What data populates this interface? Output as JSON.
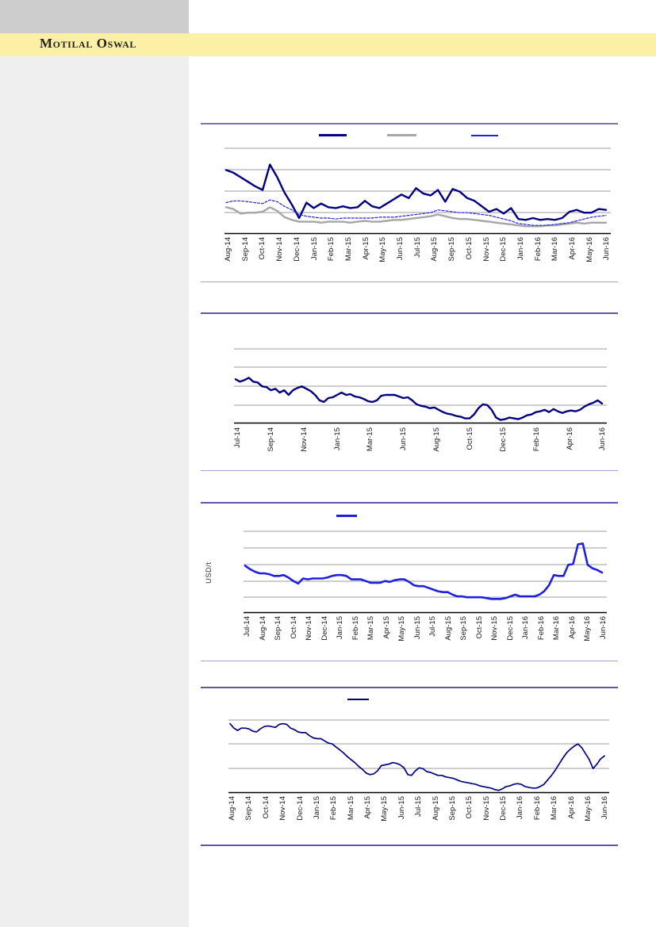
{
  "header": {
    "brand": "Motilal Oswal",
    "band_color": "#fcf0a6",
    "corner_color": "#cdcdcd",
    "sidebar_color": "#efefef"
  },
  "chart_data": [
    {
      "type": "line",
      "values_scale": "percent-of-plot-height",
      "y_tick_labels": [],
      "x_tick_labels": [
        "Aug-14",
        "Sep-14",
        "Oct-14",
        "Nov-14",
        "Dec-14",
        "Jan-15",
        "Feb-15",
        "Mar-15",
        "Apr-15",
        "May-15",
        "Jun-15",
        "Jul-15",
        "Aug-15",
        "Sep-15",
        "Oct-15",
        "Nov-15",
        "Dec-15",
        "Jan-16",
        "Feb-16",
        "Mar-16",
        "Apr-16",
        "May-16",
        "Jun-16"
      ],
      "legend": {
        "position": "top",
        "entries_text_visible": false
      },
      "series": [
        {
          "name": "navy-solid",
          "color": "#000080",
          "style": "solid",
          "width": 2.4,
          "values": [
            70,
            67,
            62,
            57,
            52,
            48,
            76,
            62,
            45,
            32,
            17,
            34,
            28,
            33,
            29,
            28,
            30,
            28,
            29,
            36,
            30,
            28,
            33,
            38,
            43,
            39,
            50,
            44,
            42,
            48,
            35,
            49,
            46,
            39,
            36,
            30,
            24,
            27,
            22,
            28,
            16,
            15,
            17,
            15,
            16,
            15,
            17,
            24,
            26,
            23,
            23,
            27,
            26
          ]
        },
        {
          "name": "gray-solid",
          "color": "#a6a6a6",
          "style": "solid",
          "width": 2.4,
          "values": [
            29,
            27,
            22,
            23,
            23,
            24,
            29,
            25,
            18,
            15,
            13,
            13,
            13,
            12,
            13,
            13,
            13,
            12,
            13,
            14,
            13,
            13,
            14,
            15,
            15,
            16,
            17,
            18,
            19,
            21,
            19,
            17,
            16,
            16,
            15,
            14,
            13,
            12,
            11,
            10,
            9,
            8,
            8,
            8,
            9,
            9,
            10,
            11,
            12,
            11,
            12,
            12,
            12
          ]
        },
        {
          "name": "blue-dashed",
          "color": "#2424dd",
          "style": "dashed",
          "width": 1.2,
          "values": [
            34,
            36,
            36,
            35,
            34,
            33,
            37,
            35,
            30,
            26,
            21,
            19,
            18,
            17,
            17,
            16,
            17,
            17,
            17,
            17,
            17,
            18,
            18,
            18,
            19,
            20,
            21,
            22,
            23,
            26,
            25,
            24,
            23,
            23,
            22,
            21,
            20,
            18,
            16,
            14,
            11,
            10,
            9,
            9,
            9,
            10,
            11,
            12,
            14,
            16,
            18,
            19,
            20
          ]
        }
      ]
    },
    {
      "type": "line",
      "values_scale": "percent-of-plot-height",
      "y_tick_labels": [],
      "x_tick_labels": [
        "Jul-14",
        "Sep-14",
        "Nov-14",
        "Jan-15",
        "Mar-15",
        "Jun-15",
        "Aug-15",
        "Oct-15",
        "Dec-15",
        "Feb-16",
        "Apr-16",
        "Jun-16"
      ],
      "series": [
        {
          "name": "navy-solid",
          "color": "#000080",
          "style": "solid",
          "width": 2.4,
          "values": [
            56,
            53,
            55,
            58,
            53,
            52,
            47,
            46,
            42,
            44,
            39,
            42,
            36,
            42,
            45,
            47,
            44,
            41,
            36,
            29,
            27,
            32,
            33,
            36,
            39,
            36,
            37,
            34,
            33,
            31,
            28,
            27,
            29,
            35,
            36,
            36,
            36,
            34,
            32,
            33,
            29,
            24,
            22,
            21,
            19,
            20,
            17,
            14,
            12,
            11,
            9,
            8,
            6,
            6,
            11,
            19,
            24,
            23,
            17,
            7,
            4,
            5,
            7,
            6,
            5,
            7,
            10,
            11,
            14,
            15,
            17,
            14,
            18,
            15,
            13,
            15,
            16,
            15,
            17,
            21,
            24,
            26,
            29,
            25
          ]
        }
      ]
    },
    {
      "type": "line",
      "values_scale": "percent-of-plot-height",
      "y_axis_label": "USD/t",
      "y_tick_labels": [],
      "x_tick_labels": [
        "Jul-14",
        "Aug-14",
        "Sep-14",
        "Oct-14",
        "Nov-14",
        "Dec-14",
        "Jan-15",
        "Feb-15",
        "Mar-15",
        "Apr-15",
        "May-15",
        "Jun-15",
        "Jul-15",
        "Aug-15",
        "Sep-15",
        "Oct-15",
        "Nov-15",
        "Dec-15",
        "Jan-16",
        "Feb-16",
        "Mar-16",
        "Apr-16",
        "May-16",
        "Jun-16"
      ],
      "legend": {
        "position": "top",
        "entries_text_visible": false
      },
      "series": [
        {
          "name": "blue-solid",
          "color": "#1f1fe0",
          "style": "solid",
          "width": 2.6,
          "values": [
            55,
            51,
            48,
            46,
            46,
            45,
            43,
            43,
            44,
            41,
            37,
            34,
            40,
            39,
            40,
            40,
            40,
            41,
            43,
            44,
            44,
            43,
            39,
            39,
            39,
            37,
            35,
            35,
            35,
            37,
            36,
            38,
            39,
            39,
            36,
            32,
            31,
            31,
            29,
            27,
            25,
            24,
            24,
            21,
            19,
            19,
            18,
            18,
            18,
            18,
            17,
            16,
            16,
            16,
            17,
            19,
            21,
            19,
            19,
            19,
            19,
            21,
            25,
            32,
            44,
            43,
            43,
            56,
            57,
            80,
            81,
            56,
            52,
            50,
            47
          ]
        }
      ]
    },
    {
      "type": "line",
      "values_scale": "percent-of-plot-height",
      "y_tick_labels": [],
      "x_tick_labels": [
        "Aug-14",
        "Sep-14",
        "Oct-14",
        "Nov-14",
        "Dec-14",
        "Jan-15",
        "Feb-15",
        "Mar-15",
        "Apr-15",
        "May-15",
        "Jun-15",
        "Jul-15",
        "Aug-15",
        "Sep-15",
        "Oct-15",
        "Nov-15",
        "Dec-15",
        "Jan-16",
        "Feb-16",
        "Mar-16",
        "Apr-16",
        "May-16",
        "Jun-16"
      ],
      "legend": {
        "position": "top",
        "entries_text_visible": false
      },
      "series": [
        {
          "name": "navy-solid",
          "color": "#000080",
          "style": "solid",
          "width": 1.7,
          "values": [
            92,
            86,
            83,
            86,
            86,
            85,
            82,
            81,
            85,
            88,
            89,
            88,
            87,
            91,
            92,
            91,
            86,
            84,
            81,
            80,
            80,
            76,
            73,
            72,
            72,
            69,
            66,
            65,
            61,
            57,
            53,
            48,
            44,
            40,
            35,
            31,
            26,
            24,
            25,
            29,
            36,
            37,
            38,
            40,
            39,
            37,
            33,
            24,
            23,
            29,
            33,
            32,
            28,
            27,
            25,
            23,
            23,
            21,
            20,
            19,
            17,
            15,
            14,
            13,
            12,
            11,
            9,
            8,
            7,
            6,
            4,
            3,
            5,
            8,
            9,
            11,
            12,
            11,
            8,
            7,
            6,
            6,
            8,
            11,
            17,
            23,
            30,
            38,
            46,
            53,
            58,
            62,
            65,
            60,
            52,
            44,
            32,
            38,
            45,
            49
          ]
        }
      ]
    }
  ]
}
